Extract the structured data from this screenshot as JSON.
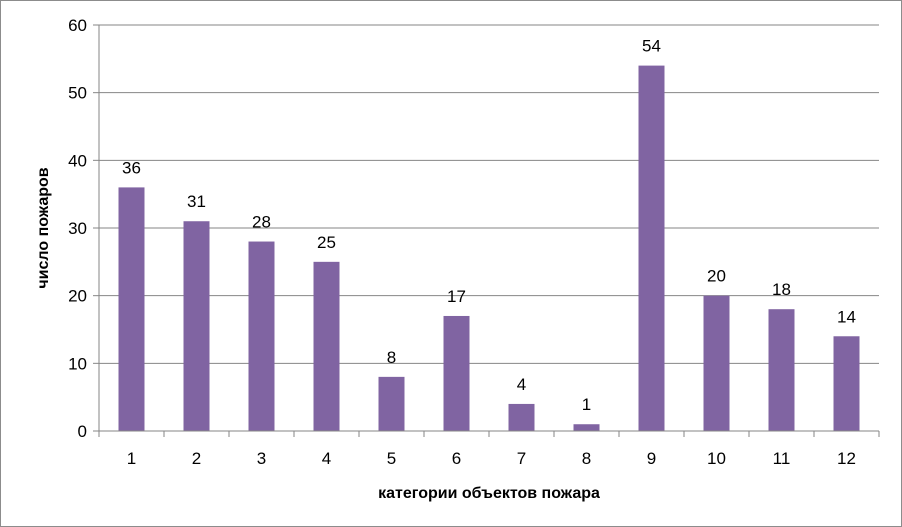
{
  "chart_data": {
    "type": "bar",
    "categories": [
      "1",
      "2",
      "3",
      "4",
      "5",
      "6",
      "7",
      "8",
      "9",
      "10",
      "11",
      "12"
    ],
    "values": [
      36,
      31,
      28,
      25,
      8,
      17,
      4,
      1,
      54,
      20,
      18,
      14
    ],
    "title": "",
    "xlabel": "категории объектов пожара",
    "ylabel": "число пожаров",
    "ylim": [
      0,
      60
    ],
    "yticks": [
      "0",
      "10",
      "20",
      "30",
      "40",
      "50",
      "60"
    ],
    "grid": true,
    "legend": "none",
    "bar_color": "#8064a2",
    "grid_color": "#868686",
    "show_data_labels": true
  }
}
